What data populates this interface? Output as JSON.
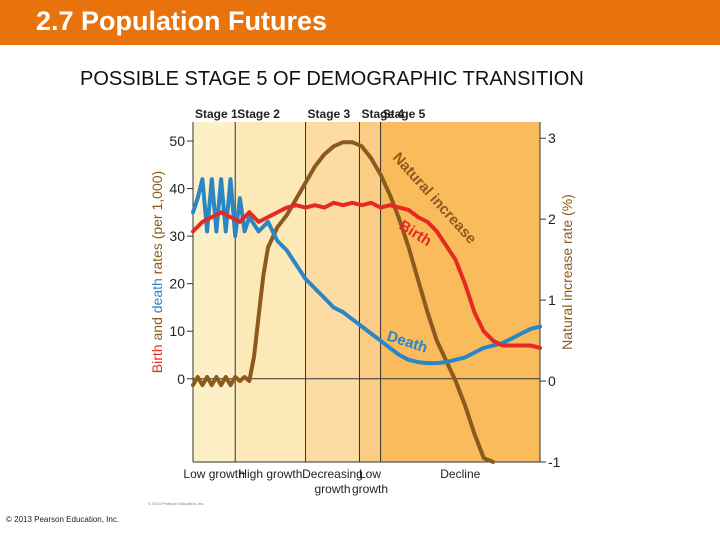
{
  "header": {
    "title": "2.7 Population Futures"
  },
  "slide": {
    "subtitle": "POSSIBLE STAGE 5 OF DEMOGRAPHIC TRANSITION",
    "copyright": "© 2013 Pearson Education, Inc."
  },
  "colors": {
    "header": "#e8720c",
    "birth": "#e52a24",
    "death": "#2b86c4",
    "natural_increase": "#8b5a1e",
    "stage1": "#fdf0c6",
    "stage2": "#fde8b8",
    "stage3": "#fcdca2",
    "stage4": "#fbcd84",
    "stage5": "#fabb5c"
  },
  "chart_data": {
    "type": "line",
    "title": "",
    "xlabel": "",
    "left_axis": {
      "label_parts": [
        {
          "text": "Birth",
          "color": "#e52a24"
        },
        {
          "text": " and ",
          "color": "#8b5a1e"
        },
        {
          "text": "death",
          "color": "#2b86c4"
        },
        {
          "text": " rates (per 1,000)",
          "color": "#8b5a1e"
        }
      ],
      "ticks": [
        "0",
        "10",
        "20",
        "30",
        "40",
        "50"
      ],
      "ylim": [
        -17.5,
        54
      ]
    },
    "right_axis": {
      "label": "Natural increase rate (%)",
      "ticks": [
        "-1",
        "0",
        "1",
        "2",
        "3"
      ],
      "ylim": [
        -1,
        3.2
      ]
    },
    "stages": [
      "Stage 1",
      "Stage 2",
      "Stage 3",
      "Stage 4",
      "Stage 5"
    ],
    "growth_labels": [
      [
        "Low growth"
      ],
      [
        "High growth"
      ],
      [
        "Decreasing",
        "growth"
      ],
      [
        "Low",
        "growth"
      ],
      [
        "Decline"
      ]
    ],
    "series": [
      {
        "name": "Birth",
        "axis": "left",
        "points": [
          [
            0,
            31
          ],
          [
            2,
            33
          ],
          [
            4,
            34
          ],
          [
            6,
            35
          ],
          [
            8,
            34
          ],
          [
            10,
            33
          ],
          [
            12,
            35
          ],
          [
            14,
            33
          ],
          [
            16,
            34
          ],
          [
            18,
            35
          ],
          [
            20,
            36
          ],
          [
            22,
            36.5
          ],
          [
            24,
            36
          ],
          [
            26,
            36.5
          ],
          [
            28,
            36
          ],
          [
            30,
            37
          ],
          [
            32,
            36.5
          ],
          [
            34,
            37
          ],
          [
            36,
            36.5
          ],
          [
            38,
            37
          ],
          [
            40,
            36
          ],
          [
            42,
            36.5
          ],
          [
            44,
            36
          ],
          [
            46,
            35.5
          ],
          [
            48,
            34
          ],
          [
            50,
            33
          ],
          [
            52,
            31
          ],
          [
            54,
            28
          ],
          [
            56,
            25
          ],
          [
            58,
            20
          ],
          [
            60,
            14
          ],
          [
            62,
            10
          ],
          [
            64,
            8
          ],
          [
            66,
            7
          ],
          [
            68,
            7
          ],
          [
            70,
            7
          ],
          [
            72,
            7
          ],
          [
            74,
            6.5
          ]
        ]
      },
      {
        "name": "Death",
        "axis": "left",
        "points": [
          [
            0,
            35
          ],
          [
            1,
            38
          ],
          [
            2,
            42
          ],
          [
            3,
            31
          ],
          [
            4,
            42
          ],
          [
            5,
            31
          ],
          [
            6,
            42
          ],
          [
            7,
            31
          ],
          [
            8,
            42
          ],
          [
            9,
            30
          ],
          [
            10,
            38
          ],
          [
            11,
            31
          ],
          [
            12,
            34
          ],
          [
            14,
            31
          ],
          [
            16,
            33
          ],
          [
            18,
            29
          ],
          [
            20,
            27
          ],
          [
            22,
            24
          ],
          [
            24,
            21
          ],
          [
            26,
            19
          ],
          [
            28,
            17
          ],
          [
            30,
            15
          ],
          [
            32,
            14
          ],
          [
            34,
            12.5
          ],
          [
            36,
            11
          ],
          [
            38,
            9.5
          ],
          [
            40,
            8
          ],
          [
            42,
            6.5
          ],
          [
            44,
            5
          ],
          [
            46,
            4
          ],
          [
            48,
            3.5
          ],
          [
            50,
            3.3
          ],
          [
            52,
            3.3
          ],
          [
            54,
            3.5
          ],
          [
            56,
            4
          ],
          [
            58,
            4.5
          ],
          [
            60,
            5.5
          ],
          [
            62,
            6.5
          ],
          [
            64,
            7
          ],
          [
            66,
            7.5
          ],
          [
            68,
            8.5
          ],
          [
            70,
            9.5
          ],
          [
            72,
            10.5
          ],
          [
            74,
            11
          ]
        ]
      },
      {
        "name": "Natural increase",
        "axis": "right",
        "points": [
          [
            0,
            -0.05
          ],
          [
            1,
            0.05
          ],
          [
            2,
            -0.05
          ],
          [
            3,
            0.05
          ],
          [
            4,
            -0.05
          ],
          [
            5,
            0.05
          ],
          [
            6,
            -0.05
          ],
          [
            7,
            0.05
          ],
          [
            8,
            -0.05
          ],
          [
            9,
            0.05
          ],
          [
            10,
            0.0
          ],
          [
            11,
            0.05
          ],
          [
            12,
            0.0
          ],
          [
            13,
            0.3
          ],
          [
            14,
            0.8
          ],
          [
            15,
            1.3
          ],
          [
            16,
            1.65
          ],
          [
            18,
            1.9
          ],
          [
            20,
            2.05
          ],
          [
            22,
            2.25
          ],
          [
            24,
            2.45
          ],
          [
            26,
            2.65
          ],
          [
            28,
            2.8
          ],
          [
            30,
            2.9
          ],
          [
            32,
            2.95
          ],
          [
            34,
            2.95
          ],
          [
            36,
            2.9
          ],
          [
            38,
            2.75
          ],
          [
            40,
            2.55
          ],
          [
            42,
            2.3
          ],
          [
            44,
            2.0
          ],
          [
            46,
            1.65
          ],
          [
            48,
            1.25
          ],
          [
            50,
            0.85
          ],
          [
            52,
            0.5
          ],
          [
            54,
            0.25
          ],
          [
            56,
            0.0
          ],
          [
            58,
            -0.3
          ],
          [
            60,
            -0.65
          ],
          [
            62,
            -0.95
          ],
          [
            64,
            -1.0
          ]
        ]
      }
    ],
    "annotations": [
      "Natural increase",
      "Birth",
      "Death"
    ],
    "credit": "© 2013 Pearson Education, Inc."
  }
}
